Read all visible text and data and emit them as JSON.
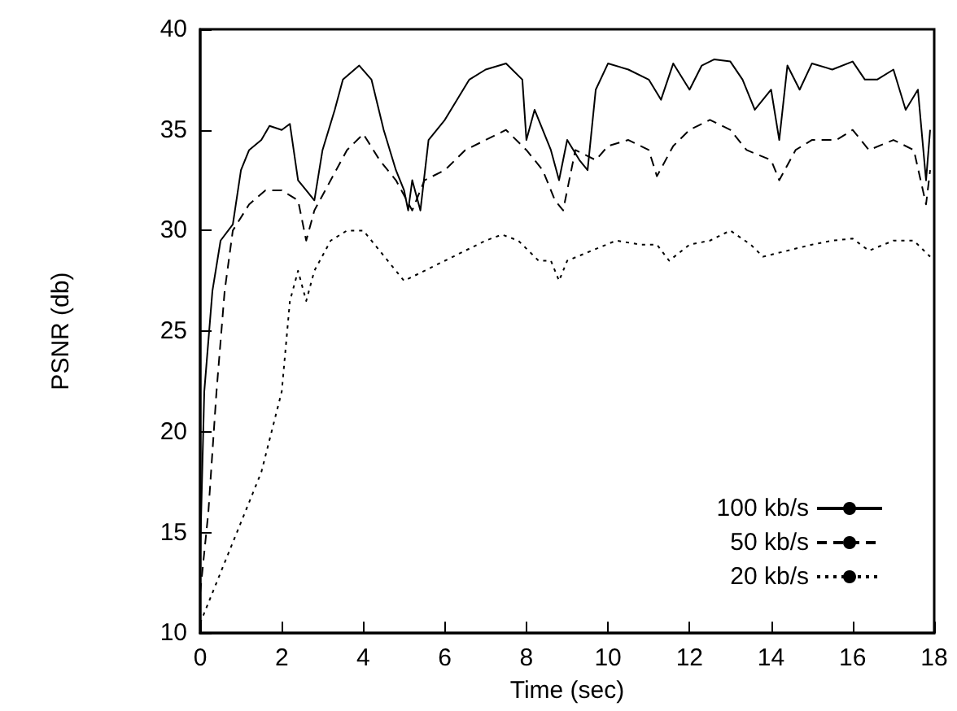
{
  "chart_data": {
    "type": "line",
    "xlabel": "Time (sec)",
    "ylabel": "PSNR (db)",
    "xlim": [
      0,
      18
    ],
    "xticks": [
      0,
      2,
      4,
      6,
      8,
      10,
      12,
      14,
      16,
      18
    ],
    "ylim": [
      10,
      40
    ],
    "yticks": [
      10,
      15,
      20,
      25,
      30,
      35,
      40
    ],
    "grid": false,
    "legend": "bottom right",
    "marker": "none",
    "series": [
      {
        "name": "100 kb/s",
        "color": "#000000",
        "line_style": "solid",
        "x": [
          0,
          0.1,
          0.3,
          0.5,
          0.8,
          1.0,
          1.2,
          1.5,
          1.7,
          2.0,
          2.2,
          2.4,
          2.6,
          2.8,
          3.0,
          3.3,
          3.5,
          3.9,
          4.2,
          4.5,
          4.8,
          5.0,
          5.1,
          5.2,
          5.4,
          5.6,
          6.0,
          6.3,
          6.6,
          7.0,
          7.5,
          7.9,
          8.0,
          8.2,
          8.6,
          8.8,
          9.0,
          9.3,
          9.5,
          9.7,
          10.0,
          10.5,
          11.0,
          11.3,
          11.6,
          12.0,
          12.3,
          12.6,
          13.0,
          13.3,
          13.6,
          14.0,
          14.2,
          14.4,
          14.7,
          15.0,
          15.5,
          16.0,
          16.3,
          16.6,
          17.0,
          17.3,
          17.6,
          17.8,
          17.9
        ],
        "values": [
          14,
          22,
          27,
          29.5,
          30.3,
          33,
          34,
          34.5,
          35.2,
          35,
          35.3,
          32.5,
          32,
          31.5,
          34,
          36,
          37.5,
          38.2,
          37.5,
          35,
          33,
          32,
          31,
          32.5,
          31,
          34.5,
          35.5,
          36.5,
          37.5,
          38,
          38.3,
          37.5,
          34.5,
          36,
          34,
          32.5,
          34.5,
          33.5,
          33,
          37,
          38.3,
          38,
          37.5,
          36.5,
          38.3,
          37,
          38.2,
          38.5,
          38.4,
          37.5,
          36,
          37,
          34.5,
          38.2,
          37,
          38.3,
          38,
          38.4,
          37.5,
          37.5,
          38,
          36,
          37,
          32.5,
          35
        ]
      },
      {
        "name": "50 kb/s",
        "color": "#000000",
        "line_style": "dashed",
        "x": [
          0,
          0.2,
          0.4,
          0.6,
          0.8,
          1.2,
          1.6,
          2.0,
          2.4,
          2.6,
          2.8,
          3.2,
          3.6,
          4.0,
          4.4,
          4.8,
          5.2,
          5.5,
          6.0,
          6.5,
          7.0,
          7.5,
          8.0,
          8.4,
          8.7,
          8.9,
          9.2,
          9.7,
          10.0,
          10.5,
          11.0,
          11.2,
          11.6,
          12.0,
          12.5,
          13.0,
          13.4,
          14.0,
          14.2,
          14.6,
          15.0,
          15.6,
          16.0,
          16.4,
          17.0,
          17.5,
          17.8,
          17.9
        ],
        "values": [
          12,
          16,
          22,
          27,
          30,
          31.3,
          32,
          32,
          31.5,
          29.5,
          31,
          32.5,
          34,
          34.8,
          33.5,
          32.5,
          31,
          32.5,
          33,
          34,
          34.5,
          35,
          34,
          33,
          31.5,
          31,
          34,
          33.5,
          34.2,
          34.5,
          34,
          32.7,
          34.2,
          35,
          35.5,
          35,
          34,
          33.5,
          32.5,
          34,
          34.5,
          34.5,
          35,
          34,
          34.5,
          34,
          31.3,
          33
        ]
      },
      {
        "name": "20 kb/s",
        "color": "#000000",
        "line_style": "dotted",
        "x": [
          0,
          0.5,
          1.0,
          1.5,
          2.0,
          2.2,
          2.4,
          2.6,
          2.8,
          3.2,
          3.6,
          4.0,
          4.4,
          5.0,
          5.5,
          6.0,
          6.5,
          7.0,
          7.4,
          7.8,
          8.3,
          8.6,
          8.8,
          9.0,
          9.6,
          10.2,
          10.8,
          11.2,
          11.5,
          12.0,
          12.5,
          13.0,
          13.5,
          13.8,
          14.4,
          15.0,
          15.5,
          16.0,
          16.4,
          17.0,
          17.5,
          17.9
        ],
        "values": [
          10.5,
          13,
          15.5,
          18,
          22,
          26.5,
          28,
          26.5,
          28,
          29.5,
          30,
          30,
          29,
          27.5,
          28,
          28.5,
          29,
          29.5,
          29.8,
          29.5,
          28.5,
          28.5,
          27.5,
          28.5,
          29,
          29.5,
          29.3,
          29.3,
          28.5,
          29.3,
          29.5,
          30,
          29.3,
          28.7,
          29,
          29.3,
          29.5,
          29.6,
          29,
          29.5,
          29.5,
          28.7
        ]
      }
    ]
  }
}
